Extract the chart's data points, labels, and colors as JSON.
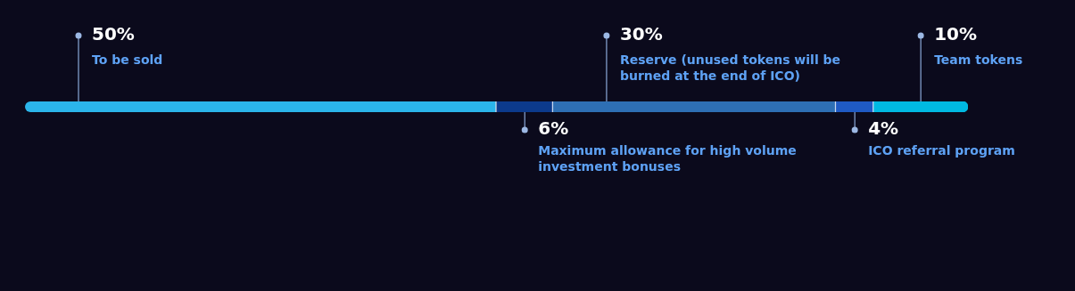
{
  "chart_data": {
    "type": "bar",
    "orientation": "horizontal",
    "stacked": true,
    "categories": [
      null
    ],
    "xlim": [
      0,
      100
    ],
    "tick_labels": false,
    "legend": false,
    "data_labels": true,
    "series": [
      {
        "name": "To be sold",
        "color": "#2bb5ea",
        "values": [
          50
        ],
        "value_labels": [
          "50%"
        ]
      },
      {
        "name": "Maximum allowance for high volume investment bonuses",
        "color": "#0c3a8c",
        "values": [
          6
        ],
        "value_labels": [
          "6%"
        ]
      },
      {
        "name": "Reserve (unused tokens will be burned at the end of ICO)",
        "color": "#2e6fb4",
        "values": [
          30
        ],
        "value_labels": [
          "30%"
        ]
      },
      {
        "name": "ICO referral program",
        "color": "#1f5ac4",
        "values": [
          4
        ],
        "value_labels": [
          "4%"
        ]
      },
      {
        "name": "Team tokens",
        "color": "#00b9e2",
        "values": [
          10
        ],
        "value_labels": [
          "10%"
        ]
      }
    ]
  }
}
